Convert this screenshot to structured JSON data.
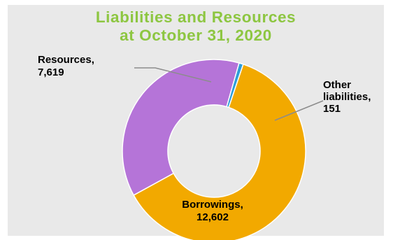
{
  "colors": {
    "title": "#8dc641",
    "panel_background": "#e9e9e9",
    "leader_line": "#8c8c8c"
  },
  "chart_data": {
    "type": "pie",
    "variant": "donut",
    "title_lines": [
      "Liabilities and Resources",
      "at October 31, 2020"
    ],
    "legend": "none",
    "slices": [
      {
        "name": "Borrowings",
        "value": 12602,
        "label_lines": [
          "Borrowings,",
          "12,602"
        ],
        "color": "#f2a900"
      },
      {
        "name": "Resources",
        "value": 7619,
        "label_lines": [
          "Resources,",
          "7,619"
        ],
        "color": "#b574d8"
      },
      {
        "name": "Other liabilities",
        "value": 151,
        "label_lines": [
          "Other",
          "liabilities,",
          "151"
        ],
        "color": "#2f9ed8"
      }
    ]
  }
}
